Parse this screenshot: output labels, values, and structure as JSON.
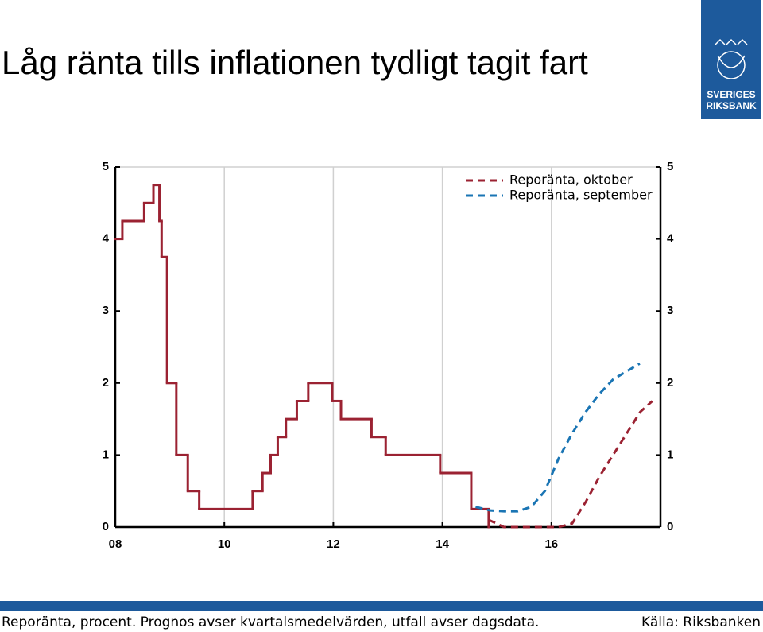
{
  "logo": [
    "SVERIGES",
    "RIKSBANK"
  ],
  "chart_data": {
    "type": "line",
    "title": "Låg ränta tills inflationen tydligt tagit fart",
    "note": "Reporänta, procent. Prognos avser kvartalsmedelvärden, utfall avser dagsdata.",
    "source": "Källa: Riksbanken",
    "xlim": [
      2008,
      2018
    ],
    "xticks": [
      {
        "value": 2008,
        "label": "08"
      },
      {
        "value": 2010,
        "label": "10"
      },
      {
        "value": 2012,
        "label": "12"
      },
      {
        "value": 2014,
        "label": "14"
      },
      {
        "value": 2016,
        "label": "16"
      }
    ],
    "ylim": [
      0,
      5
    ],
    "yticks": [
      0,
      1,
      2,
      3,
      4,
      5
    ],
    "y2lim": [
      0,
      5
    ],
    "y2ticks": [
      0,
      1,
      2,
      3,
      4,
      5
    ],
    "grid": "x",
    "series": [
      {
        "name": null,
        "color": "#9b2232",
        "style": "steps-post",
        "x": [
          2008.0,
          2008.13,
          2008.53,
          2008.7,
          2008.81,
          2008.85,
          2008.95,
          2009.12,
          2009.33,
          2009.54,
          2010.52,
          2010.7,
          2010.85,
          2010.98,
          2011.13,
          2011.33,
          2011.54,
          2011.98,
          2012.14,
          2012.7,
          2012.96,
          2013.96,
          2014.53,
          2014.85
        ],
        "values": [
          4.0,
          4.25,
          4.5,
          4.75,
          4.25,
          3.75,
          2.0,
          1.0,
          0.5,
          0.25,
          0.5,
          0.75,
          1.0,
          1.25,
          1.5,
          1.75,
          2.0,
          1.75,
          1.5,
          1.25,
          1.0,
          0.75,
          0.25,
          0.0
        ]
      },
      {
        "name": "Reporänta, oktober",
        "color": "#9b2232",
        "style": "dashed",
        "x": [
          2014.85,
          2015.13,
          2015.38,
          2015.63,
          2015.88,
          2016.13,
          2016.38,
          2016.63,
          2016.88,
          2017.13,
          2017.38,
          2017.63,
          2017.85
        ],
        "values": [
          0.1,
          0.0,
          0.0,
          0.0,
          0.0,
          0.0,
          0.05,
          0.35,
          0.7,
          1.0,
          1.3,
          1.6,
          1.75
        ]
      },
      {
        "name": "Reporänta, september",
        "color": "#1a75b4",
        "style": "dashed",
        "x": [
          2014.61,
          2014.88,
          2015.13,
          2015.38,
          2015.63,
          2015.88,
          2016.13,
          2016.38,
          2016.63,
          2016.88,
          2017.13,
          2017.62
        ],
        "values": [
          0.28,
          0.23,
          0.22,
          0.22,
          0.28,
          0.5,
          0.95,
          1.3,
          1.6,
          1.85,
          2.05,
          2.27
        ]
      }
    ],
    "legend": "upper right"
  }
}
